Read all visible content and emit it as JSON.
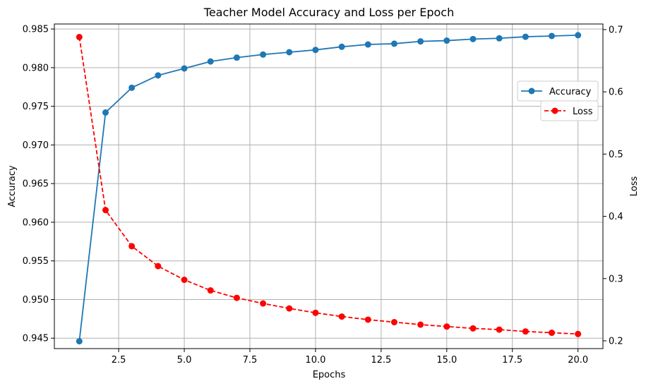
{
  "chart_data": {
    "type": "line",
    "title": "Teacher Model Accuracy and Loss per Epoch",
    "xlabel": "Epochs",
    "ylabel_left": "Accuracy",
    "ylabel_right": "Loss",
    "xlim": [
      0.05,
      20.95
    ],
    "ylim_left": [
      0.94365,
      0.98565
    ],
    "ylim_right": [
      0.1875,
      0.709
    ],
    "x_ticks": [
      2.5,
      5.0,
      7.5,
      10.0,
      12.5,
      15.0,
      17.5,
      20.0
    ],
    "x_tick_labels": [
      "2.5",
      "5.0",
      "7.5",
      "10.0",
      "12.5",
      "15.0",
      "17.5",
      "20.0"
    ],
    "y_left_ticks": [
      0.945,
      0.95,
      0.955,
      0.96,
      0.965,
      0.97,
      0.975,
      0.98,
      0.985
    ],
    "y_left_tick_labels": [
      "0.945",
      "0.950",
      "0.955",
      "0.960",
      "0.965",
      "0.970",
      "0.975",
      "0.980",
      "0.985"
    ],
    "y_right_ticks": [
      0.2,
      0.3,
      0.4,
      0.5,
      0.6,
      0.7
    ],
    "y_right_tick_labels": [
      "0.2",
      "0.3",
      "0.4",
      "0.5",
      "0.6",
      "0.7"
    ],
    "grid": true,
    "x": [
      1,
      2,
      3,
      4,
      5,
      6,
      7,
      8,
      9,
      10,
      11,
      12,
      13,
      14,
      15,
      16,
      17,
      18,
      19,
      20
    ],
    "series": [
      {
        "name": "Accuracy",
        "axis": "left",
        "color": "#1f77b4",
        "style": "solid",
        "marker": "circle",
        "values": [
          0.9446,
          0.9742,
          0.9774,
          0.979,
          0.9799,
          0.9808,
          0.9813,
          0.9817,
          0.982,
          0.9823,
          0.9827,
          0.983,
          0.9831,
          0.9834,
          0.9835,
          0.9837,
          0.9838,
          0.984,
          0.9841,
          0.9842
        ]
      },
      {
        "name": "Loss",
        "axis": "right",
        "color": "#ff0000",
        "style": "dashed",
        "marker": "circle",
        "values": [
          0.688,
          0.41,
          0.352,
          0.32,
          0.298,
          0.281,
          0.269,
          0.26,
          0.252,
          0.245,
          0.239,
          0.234,
          0.23,
          0.226,
          0.223,
          0.22,
          0.218,
          0.215,
          0.213,
          0.211
        ]
      }
    ],
    "legends": [
      {
        "series": "Accuracy",
        "placement": "upper-right"
      },
      {
        "series": "Loss",
        "placement": "right"
      }
    ]
  }
}
